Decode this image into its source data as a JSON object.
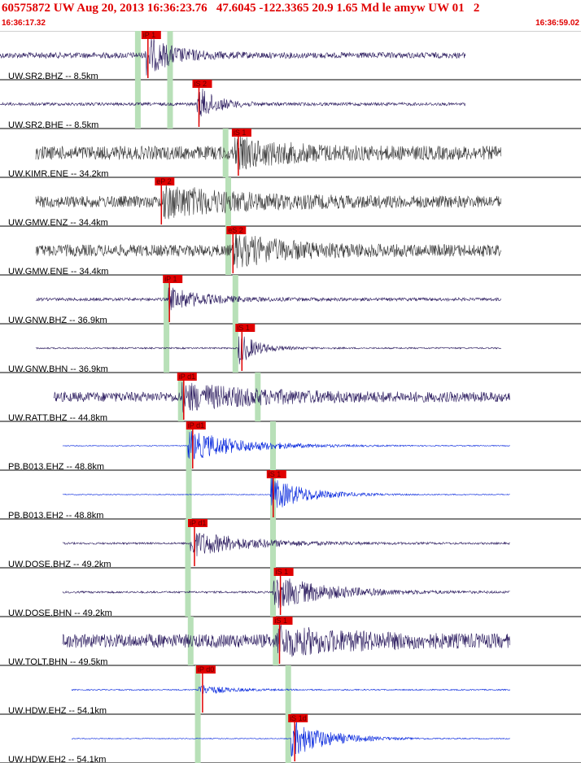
{
  "header": {
    "title": "60575872 UW Aug 20, 2013 16:36:23.76   47.6045 -122.3365 20.9 1.65 Md le amyw UW 01   2",
    "start_time": "16:36:17.32",
    "end_time": "16:36:59.02"
  },
  "colors": {
    "header_text": "#e00000",
    "pick_red": "#e00000",
    "pick_band": "#b8e0b8",
    "trace_purple": "#2a1a5e",
    "trace_gray": "#3a3a3a",
    "trace_blue": "#0022dd"
  },
  "chart_data": {
    "type": "line",
    "title": "60575872 UW Aug 20, 2013 16:36:23.76   47.6045 -122.3365 20.9 1.65 Md le amyw UW 01   2",
    "x_range_seconds": [
      0,
      41.7
    ],
    "x_start_label": "16:36:17.32",
    "x_end_label": "16:36:59.02",
    "series": [
      {
        "name": "UW.SR2.BHZ -- 8.5km",
        "style": "purple",
        "pick": "iP 1",
        "pick_time": 15.8,
        "arrival": 16.2,
        "band": 15.4,
        "band2": 19.0,
        "data_start": 0.0,
        "data_end": 52.0,
        "amp": 0.15,
        "burst": 1.0,
        "decay": 3.0
      },
      {
        "name": "UW.SR2.BHE -- 8.5km",
        "style": "purple",
        "pick": "iS 2",
        "pick_time": 21.5,
        "arrival": 22.0,
        "band": 15.4,
        "band2": 19.0,
        "data_start": 0.0,
        "data_end": 52.0,
        "amp": 0.08,
        "burst": 1.0,
        "decay": 2.0
      },
      {
        "name": "UW.KIMR.ENE -- 34.2km",
        "style": "gray",
        "pick": "iS 1",
        "pick_time": 25.9,
        "arrival": 26.2,
        "band": 25.2,
        "data_start": 4.0,
        "data_end": 56.0,
        "amp": 0.35,
        "burst": 0.6,
        "decay": 6.0
      },
      {
        "name": "UW.GMW.ENZ -- 34.4km",
        "style": "gray",
        "pick": "eP 2",
        "pick_time": 17.3,
        "arrival": 18.2,
        "band": 25.5,
        "data_start": 4.0,
        "data_end": 56.0,
        "amp": 0.3,
        "burst": 0.7,
        "decay": 8.0
      },
      {
        "name": "UW.GMW.ENE -- 34.4km",
        "style": "gray",
        "pick": "eS 2",
        "pick_time": 25.3,
        "arrival": 26.0,
        "band": 25.5,
        "data_start": 4.0,
        "data_end": 56.0,
        "amp": 0.3,
        "burst": 0.7,
        "decay": 6.0
      },
      {
        "name": "UW.GNW.BHZ -- 36.9km",
        "style": "purple",
        "pick": "iP 1",
        "pick_time": 18.2,
        "arrival": 18.8,
        "band": 18.6,
        "band2": 26.3,
        "data_start": 4.0,
        "data_end": 56.0,
        "amp": 0.08,
        "burst": 0.6,
        "decay": 4.0
      },
      {
        "name": "UW.GNW.BHN -- 36.9km",
        "style": "purple",
        "pick": "iS 1",
        "pick_time": 26.3,
        "arrival": 26.6,
        "band": 18.6,
        "band2": 26.3,
        "data_start": 4.0,
        "data_end": 56.0,
        "amp": 0.04,
        "burst": 0.9,
        "decay": 2.0
      },
      {
        "name": "UW.RATT.BHZ -- 44.8km",
        "style": "purple",
        "pick": "iP d1",
        "pick_time": 19.8,
        "arrival": 20.3,
        "band": 20.2,
        "band2": 28.8,
        "data_start": 6.0,
        "data_end": 57.0,
        "amp": 0.25,
        "burst": 0.6,
        "decay": 8.0
      },
      {
        "name": "PB.B013.EHZ -- 48.8km",
        "style": "blue",
        "pick": "iP d1",
        "pick_time": 20.8,
        "arrival": 21.0,
        "band": 21.1,
        "band2": 30.5,
        "data_start": 7.0,
        "data_end": 57.0,
        "amp": 0.02,
        "burst": 0.8,
        "decay": 6.0
      },
      {
        "name": "PB.B013.EH2 -- 48.8km",
        "style": "blue",
        "pick": "iS 1",
        "pick_time": 29.8,
        "arrival": 30.2,
        "band": 21.1,
        "band2": 30.5,
        "data_start": 7.0,
        "data_end": 57.0,
        "amp": 0.02,
        "burst": 0.9,
        "decay": 4.0
      },
      {
        "name": "UW.DOSE.BHZ -- 49.2km",
        "style": "purple",
        "pick": "iP d1",
        "pick_time": 21.0,
        "arrival": 21.2,
        "band": 21.0,
        "band2": 30.5,
        "data_start": 7.0,
        "data_end": 57.0,
        "amp": 0.05,
        "burst": 0.7,
        "decay": 6.0
      },
      {
        "name": "UW.DOSE.BHN -- 49.2km",
        "style": "purple",
        "pick": "iS 1",
        "pick_time": 30.6,
        "arrival": 30.5,
        "band": 21.0,
        "band2": 30.5,
        "data_start": 7.0,
        "data_end": 57.0,
        "amp": 0.05,
        "burst": 0.9,
        "decay": 6.0
      },
      {
        "name": "UW.TOLT.BHN -- 49.5km",
        "style": "purple",
        "pick": "iS 1",
        "pick_time": 30.5,
        "arrival": 30.8,
        "band": 21.3,
        "band2": 30.8,
        "data_start": 7.0,
        "data_end": 57.0,
        "amp": 0.35,
        "burst": 0.6,
        "decay": 8.0
      },
      {
        "name": "UW.HDW.EHZ -- 54.1km",
        "style": "blue",
        "pick": "iP d0",
        "pick_time": 21.9,
        "arrival": 22.1,
        "band": 22.1,
        "band2": 32.2,
        "data_start": 8.0,
        "data_end": 57.0,
        "amp": 0.03,
        "burst": 0.3,
        "decay": 3.0
      },
      {
        "name": "UW.HDW.EH2 -- 54.1km",
        "style": "blue",
        "pick": "iS 1d",
        "pick_time": 32.2,
        "arrival": 32.5,
        "band": 22.1,
        "band2": 32.2,
        "data_start": 8.0,
        "data_end": 57.0,
        "amp": 0.02,
        "burst": 1.0,
        "decay": 4.0
      }
    ]
  }
}
